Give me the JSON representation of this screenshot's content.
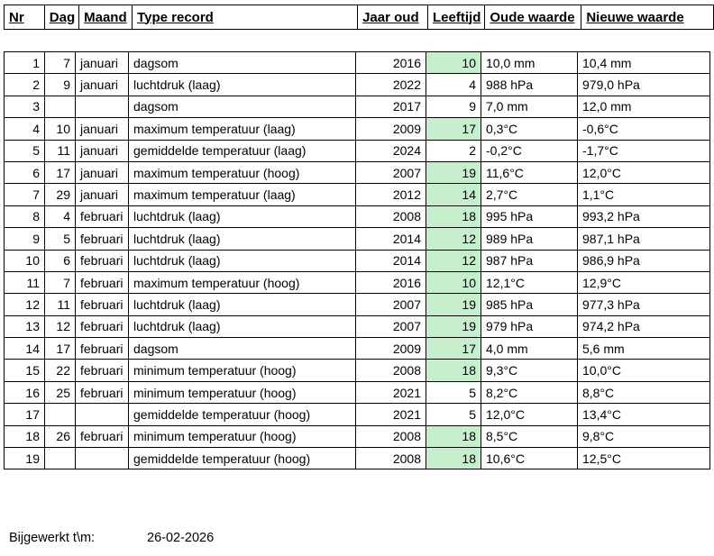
{
  "colors": {
    "leeftijd_highlight": "#C6EFCE",
    "grid_border": "#000000",
    "text": "#000000",
    "background": "#FFFFFF"
  },
  "table": {
    "headers": [
      "Nr",
      "Dag",
      "Maand",
      "Type record",
      "Jaar oud",
      "Leeftijd",
      "Oude waarde",
      "Nieuwe waarde"
    ],
    "rows": [
      {
        "nr": "1",
        "dag": "7",
        "maand": "januari",
        "type": "dagsom",
        "jaar_oud": "2016",
        "leeftijd": "10",
        "oude_waarde": "10,0 mm",
        "nieuwe_waarde": "10,4 mm",
        "highlight": true
      },
      {
        "nr": "2",
        "dag": "9",
        "maand": "januari",
        "type": "luchtdruk (laag)",
        "jaar_oud": "2022",
        "leeftijd": "4",
        "oude_waarde": "988 hPa",
        "nieuwe_waarde": "979,0 hPa",
        "highlight": false
      },
      {
        "nr": "3",
        "dag": "",
        "maand": "",
        "type": "dagsom",
        "jaar_oud": "2017",
        "leeftijd": "9",
        "oude_waarde": "7,0 mm",
        "nieuwe_waarde": "12,0 mm",
        "highlight": false
      },
      {
        "nr": "4",
        "dag": "10",
        "maand": "januari",
        "type": "maximum temperatuur (laag)",
        "jaar_oud": "2009",
        "leeftijd": "17",
        "oude_waarde": "0,3°C",
        "nieuwe_waarde": "-0,6°C",
        "highlight": true
      },
      {
        "nr": "5",
        "dag": "11",
        "maand": "januari",
        "type": "gemiddelde temperatuur (laag)",
        "jaar_oud": "2024",
        "leeftijd": "2",
        "oude_waarde": "-0,2°C",
        "nieuwe_waarde": "-1,7°C",
        "highlight": false
      },
      {
        "nr": "6",
        "dag": "17",
        "maand": "januari",
        "type": "maximum temperatuur (hoog)",
        "jaar_oud": "2007",
        "leeftijd": "19",
        "oude_waarde": "11,6°C",
        "nieuwe_waarde": "12,0°C",
        "highlight": true
      },
      {
        "nr": "7",
        "dag": "29",
        "maand": "januari",
        "type": "maximum temperatuur (laag)",
        "jaar_oud": "2012",
        "leeftijd": "14",
        "oude_waarde": "2,7°C",
        "nieuwe_waarde": "1,1°C",
        "highlight": true
      },
      {
        "nr": "8",
        "dag": "4",
        "maand": "februari",
        "type": "luchtdruk (laag)",
        "jaar_oud": "2008",
        "leeftijd": "18",
        "oude_waarde": "995 hPa",
        "nieuwe_waarde": "993,2 hPa",
        "highlight": true
      },
      {
        "nr": "9",
        "dag": "5",
        "maand": "februari",
        "type": "luchtdruk (laag)",
        "jaar_oud": "2014",
        "leeftijd": "12",
        "oude_waarde": "989 hPa",
        "nieuwe_waarde": "987,1 hPa",
        "highlight": true
      },
      {
        "nr": "10",
        "dag": "6",
        "maand": "februari",
        "type": "luchtdruk (laag)",
        "jaar_oud": "2014",
        "leeftijd": "12",
        "oude_waarde": "987 hPa",
        "nieuwe_waarde": "986,9 hPa",
        "highlight": true
      },
      {
        "nr": "11",
        "dag": "7",
        "maand": "februari",
        "type": "maximum temperatuur (hoog)",
        "jaar_oud": "2016",
        "leeftijd": "10",
        "oude_waarde": "12,1°C",
        "nieuwe_waarde": "12,9°C",
        "highlight": true
      },
      {
        "nr": "12",
        "dag": "11",
        "maand": "februari",
        "type": "luchtdruk (laag)",
        "jaar_oud": "2007",
        "leeftijd": "19",
        "oude_waarde": "985 hPa",
        "nieuwe_waarde": "977,3 hPa",
        "highlight": true
      },
      {
        "nr": "13",
        "dag": "12",
        "maand": "februari",
        "type": "luchtdruk (laag)",
        "jaar_oud": "2007",
        "leeftijd": "19",
        "oude_waarde": "979 hPa",
        "nieuwe_waarde": "974,2 hPa",
        "highlight": true
      },
      {
        "nr": "14",
        "dag": "17",
        "maand": "februari",
        "type": "dagsom",
        "jaar_oud": "2009",
        "leeftijd": "17",
        "oude_waarde": "4,0 mm",
        "nieuwe_waarde": "5,6 mm",
        "highlight": true
      },
      {
        "nr": "15",
        "dag": "22",
        "maand": "februari",
        "type": "minimum temperatuur (hoog)",
        "jaar_oud": "2008",
        "leeftijd": "18",
        "oude_waarde": "9,3°C",
        "nieuwe_waarde": "10,0°C",
        "highlight": true
      },
      {
        "nr": "16",
        "dag": "25",
        "maand": "februari",
        "type": "minimum temperatuur (hoog)",
        "jaar_oud": "2021",
        "leeftijd": "5",
        "oude_waarde": "8,2°C",
        "nieuwe_waarde": "8,8°C",
        "highlight": false
      },
      {
        "nr": "17",
        "dag": "",
        "maand": "",
        "type": "gemiddelde temperatuur (hoog)",
        "jaar_oud": "2021",
        "leeftijd": "5",
        "oude_waarde": "12,0°C",
        "nieuwe_waarde": "13,4°C",
        "highlight": false
      },
      {
        "nr": "18",
        "dag": "26",
        "maand": "februari",
        "type": "minimum temperatuur (hoog)",
        "jaar_oud": "2008",
        "leeftijd": "18",
        "oude_waarde": "8,5°C",
        "nieuwe_waarde": "9,8°C",
        "highlight": true
      },
      {
        "nr": "19",
        "dag": "",
        "maand": "",
        "type": "gemiddelde temperatuur (hoog)",
        "jaar_oud": "2008",
        "leeftijd": "18",
        "oude_waarde": "10,6°C",
        "nieuwe_waarde": "12,5°C",
        "highlight": true
      }
    ]
  },
  "footer": {
    "label": "Bijgewerkt t\\m:",
    "date": "26-02-2026"
  }
}
